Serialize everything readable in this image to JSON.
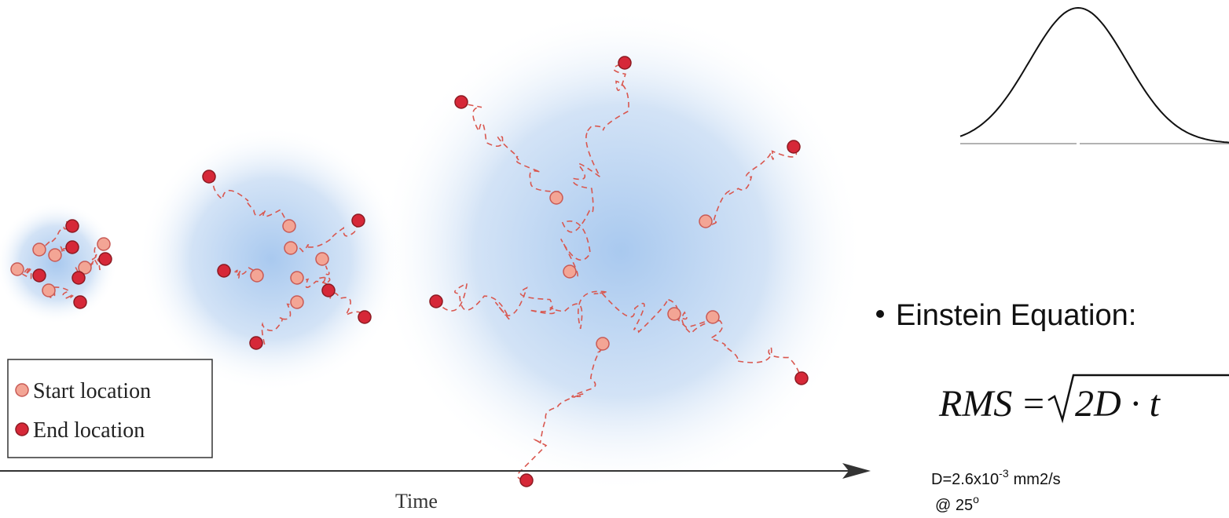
{
  "legend": {
    "start": "Start location",
    "end": "End location"
  },
  "axis_label": "Time",
  "bullet": "Einstein Equation:",
  "equation": {
    "lhs": "RMS",
    "operator": "=",
    "radicand": "2D · t"
  },
  "diffusion_constant": {
    "prefix": "D=2.6x10",
    "exponent": "-3",
    "unit": "mm2/s"
  },
  "temperature": {
    "prefix": "@ 25",
    "exponent": "o"
  }
}
